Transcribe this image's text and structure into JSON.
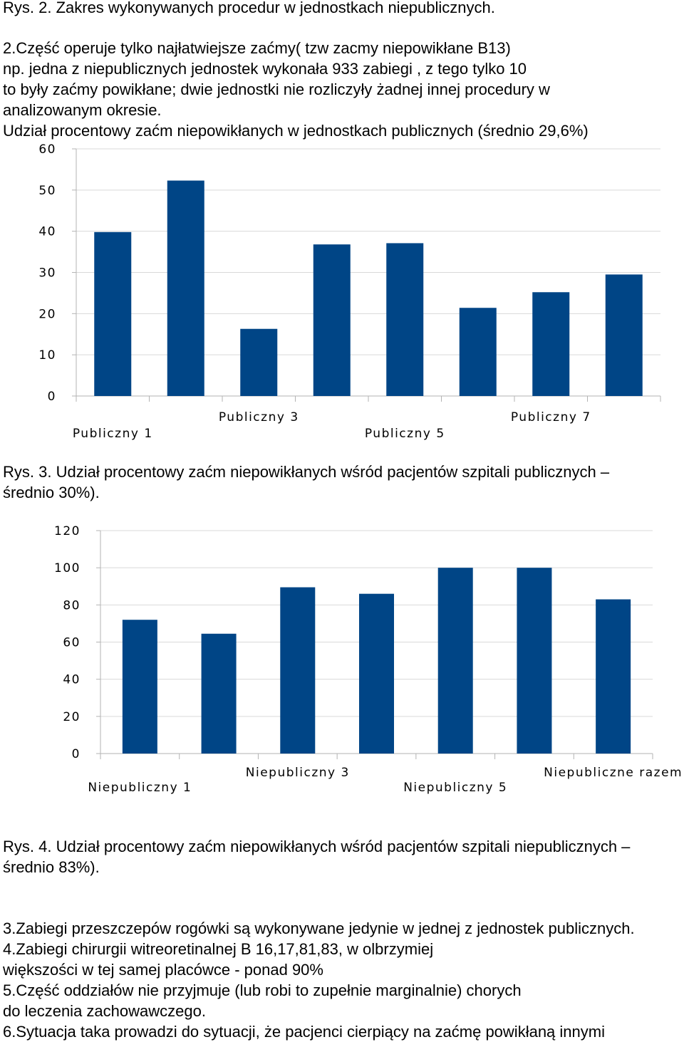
{
  "text": {
    "rys2": "Rys. 2. Zakres wykonywanych procedur w jednostkach niepublicznych.",
    "p2_l1": "2.Część operuje tylko najłatwiejsze zaćmy( tzw zacmy niepowikłane B13)",
    "p2_l2": "np. jedna z niepublicznych jednostek  wykonała 933 zabiegi , z tego tylko 10",
    "p2_l3": "to były zaćmy powikłane; dwie jednostki nie rozliczyły żadnej innej procedury w",
    "p2_l4": "analizowanym okresie.",
    "chart1_heading": "Udział procentowy zaćm niepowikłanych w jednostkach publicznych (średnio 29,6%)",
    "rys3_l1": "Rys. 3. Udział procentowy zaćm niepowikłanych wśród pacjentów szpitali publicznych –",
    "rys3_l2": "średnio 30%).",
    "rys4_l1": "Rys. 4. Udział procentowy zaćm niepowikłanych wśród pacjentów szpitali niepublicznych –",
    "rys4_l2": "średnio 83%).",
    "p3": "3.Zabiegi przeszczepów rogówki są wykonywane jedynie w jednej z jednostek publicznych.",
    "p4_l1": "4.Zabiegi chirurgii witreoretinalnej B 16,17,81,83, w olbrzymiej",
    "p4_l2": "większości w tej samej placówce - ponad 90%",
    "p5_l1": "5.Część oddziałów nie przyjmuje (lub robi to zupełnie marginalnie) chorych",
    "p5_l2": "do leczenia zachowawczego.",
    "p6": "6.Sytuacja taka prowadzi do sytuacji, że pacjenci cierpiący na zaćmę powikłaną innymi"
  },
  "colors": {
    "bar": "#004586",
    "grid": "#d9d9d9",
    "axis": "#b3b3b3"
  },
  "chart_data": [
    {
      "type": "bar",
      "categories": [
        "Publiczny 1",
        "",
        "Publiczny 3",
        "",
        "Publiczny 5",
        "",
        "Publiczny 7",
        ""
      ],
      "values": [
        39.8,
        52.3,
        16.3,
        36.8,
        37.1,
        21.4,
        25.2,
        29.5
      ],
      "ylim": [
        0,
        60
      ],
      "yticks": [
        "0",
        "10",
        "20",
        "30",
        "40",
        "50",
        "60"
      ],
      "title": "",
      "xlabel": "",
      "ylabel": "",
      "grid": true
    },
    {
      "type": "bar",
      "categories": [
        "Niepubliczny 1",
        "",
        "Niepubliczny 3",
        "",
        "Niepubliczny 5",
        "",
        "Niepubliczne razem"
      ],
      "values": [
        72,
        64.5,
        89.5,
        86,
        100,
        100,
        83
      ],
      "ylim": [
        0,
        120
      ],
      "yticks": [
        "0",
        "20",
        "40",
        "60",
        "80",
        "100",
        "120"
      ],
      "title": "",
      "xlabel": "",
      "ylabel": "",
      "grid": true
    }
  ]
}
